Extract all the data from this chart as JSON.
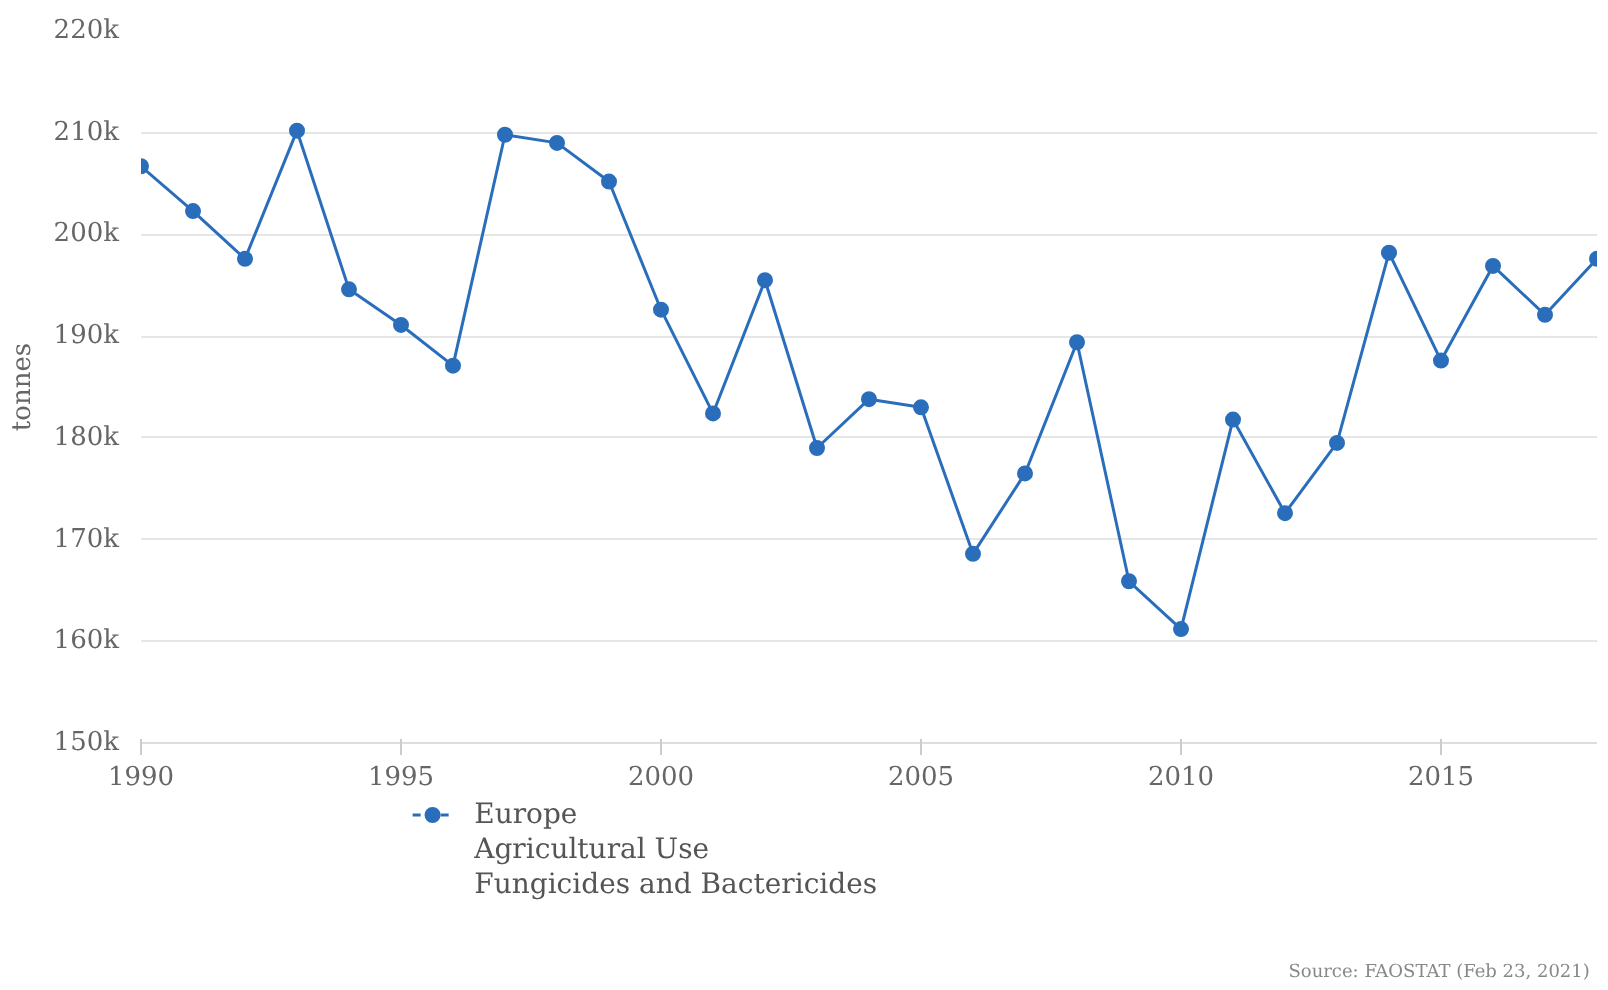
{
  "chart_data": {
    "type": "line",
    "ylabel": "tonnes",
    "x": [
      1990,
      1991,
      1992,
      1993,
      1994,
      1995,
      1996,
      1997,
      1998,
      1999,
      2000,
      2001,
      2002,
      2003,
      2004,
      2005,
      2006,
      2007,
      2008,
      2009,
      2010,
      2011,
      2012,
      2013,
      2014,
      2015,
      2016,
      2017,
      2018
    ],
    "series": [
      {
        "name": "Europe\nAgricultural Use\nFungicides and Bactericides",
        "color": "#2a6ebb",
        "values": [
          206.7,
          202.3,
          197.6,
          210.2,
          194.6,
          191.1,
          187.1,
          209.8,
          209.0,
          205.2,
          192.6,
          182.4,
          195.5,
          179.0,
          183.8,
          183.0,
          168.6,
          176.5,
          189.4,
          165.9,
          161.2,
          181.8,
          172.6,
          179.5,
          198.2,
          187.6,
          196.9,
          192.1,
          197.6
        ]
      }
    ],
    "xlim": [
      1990,
      2018
    ],
    "ylim": [
      150,
      220
    ],
    "xticks": [
      1990,
      1995,
      2000,
      2005,
      2010,
      2015
    ],
    "yticks": [
      {
        "value": 150,
        "label": "150k"
      },
      {
        "value": 160,
        "label": "160k"
      },
      {
        "value": 170,
        "label": "170k"
      },
      {
        "value": 180,
        "label": "180k"
      },
      {
        "value": 190,
        "label": "190k"
      },
      {
        "value": 200,
        "label": "200k"
      },
      {
        "value": 210,
        "label": "210k"
      },
      {
        "value": 220,
        "label": "220k"
      }
    ],
    "grid": "y",
    "legend": "bottom",
    "marker": "circle",
    "line_style": "solid",
    "annotations": [
      "Source: FAOSTAT (Feb 23, 2021)"
    ]
  }
}
